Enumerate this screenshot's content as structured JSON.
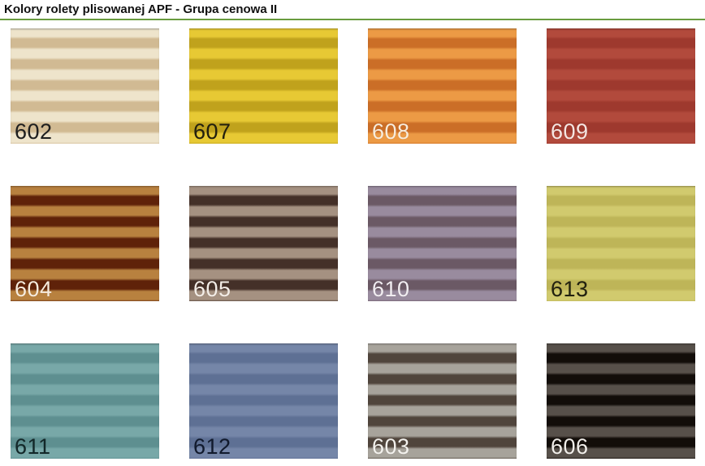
{
  "page": {
    "title": "Kolory rolety plisowanej APF - Grupa cenowa II",
    "rule_color": "#699c3f",
    "background_color": "#ffffff"
  },
  "swatch_grid": {
    "columns": 4,
    "rows": 3,
    "description": "pleated-blind color samples, horizontal pleat stripes",
    "swatches": [
      {
        "code": "602",
        "light": "#eee4cb",
        "dark": "#d1ba93",
        "label_color": "#1f1f1f"
      },
      {
        "code": "607",
        "light": "#e7c934",
        "dark": "#c0a21c",
        "label_color": "#23200e"
      },
      {
        "code": "608",
        "light": "#ec9a45",
        "dark": "#cb6e27",
        "label_color": "#f8ecdc"
      },
      {
        "code": "609",
        "light": "#b24a3c",
        "dark": "#9e392e",
        "label_color": "#f5e6e2"
      },
      {
        "code": "604",
        "light": "#b8813f",
        "dark": "#5f2209",
        "label_color": "#f6ebdd"
      },
      {
        "code": "605",
        "light": "#a59181",
        "dark": "#443028",
        "label_color": "#f3ede7"
      },
      {
        "code": "610",
        "light": "#998b9e",
        "dark": "#6b5965",
        "label_color": "#f1edf1"
      },
      {
        "code": "613",
        "light": "#d1ca6e",
        "dark": "#beb558",
        "label_color": "#22210f"
      },
      {
        "code": "611",
        "light": "#78a8a8",
        "dark": "#5e8f90",
        "label_color": "#132829"
      },
      {
        "code": "612",
        "light": "#7586a8",
        "dark": "#5e7094",
        "label_color": "#111a2d"
      },
      {
        "code": "603",
        "light": "#a7a39b",
        "dark": "#50453c",
        "label_color": "#f3f1ed"
      },
      {
        "code": "606",
        "light": "#57504a",
        "dark": "#120d09",
        "label_color": "#f1eeea"
      }
    ]
  }
}
